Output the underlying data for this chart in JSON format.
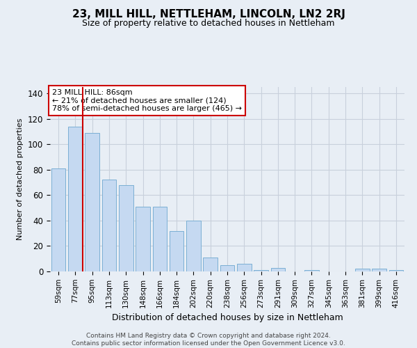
{
  "title": "23, MILL HILL, NETTLEHAM, LINCOLN, LN2 2RJ",
  "subtitle": "Size of property relative to detached houses in Nettleham",
  "xlabel": "Distribution of detached houses by size in Nettleham",
  "ylabel": "Number of detached properties",
  "categories": [
    "59sqm",
    "77sqm",
    "95sqm",
    "113sqm",
    "130sqm",
    "148sqm",
    "166sqm",
    "184sqm",
    "202sqm",
    "220sqm",
    "238sqm",
    "256sqm",
    "273sqm",
    "291sqm",
    "309sqm",
    "327sqm",
    "345sqm",
    "363sqm",
    "381sqm",
    "399sqm",
    "416sqm"
  ],
  "values": [
    81,
    114,
    109,
    72,
    68,
    51,
    51,
    32,
    40,
    11,
    5,
    6,
    1,
    3,
    0,
    1,
    0,
    0,
    2,
    2,
    1
  ],
  "bar_color": "#c5d9f1",
  "bar_edge_color": "#7bafd4",
  "red_line_x": 1,
  "annotation_title": "23 MILL HILL: 86sqm",
  "annotation_line1": "← 21% of detached houses are smaller (124)",
  "annotation_line2": "78% of semi-detached houses are larger (465) →",
  "annotation_box_color": "#ffffff",
  "annotation_box_edge": "#cc0000",
  "red_line_color": "#cc0000",
  "ylim": [
    0,
    145
  ],
  "yticks": [
    0,
    20,
    40,
    60,
    80,
    100,
    120,
    140
  ],
  "grid_color": "#c8d0dc",
  "footer_line1": "Contains HM Land Registry data © Crown copyright and database right 2024.",
  "footer_line2": "Contains public sector information licensed under the Open Government Licence v3.0.",
  "bg_color": "#e8eef5",
  "title_fontsize": 11,
  "subtitle_fontsize": 9,
  "ylabel_fontsize": 8,
  "xlabel_fontsize": 9,
  "tick_fontsize": 7.5,
  "annotation_fontsize": 8,
  "footer_fontsize": 6.5
}
